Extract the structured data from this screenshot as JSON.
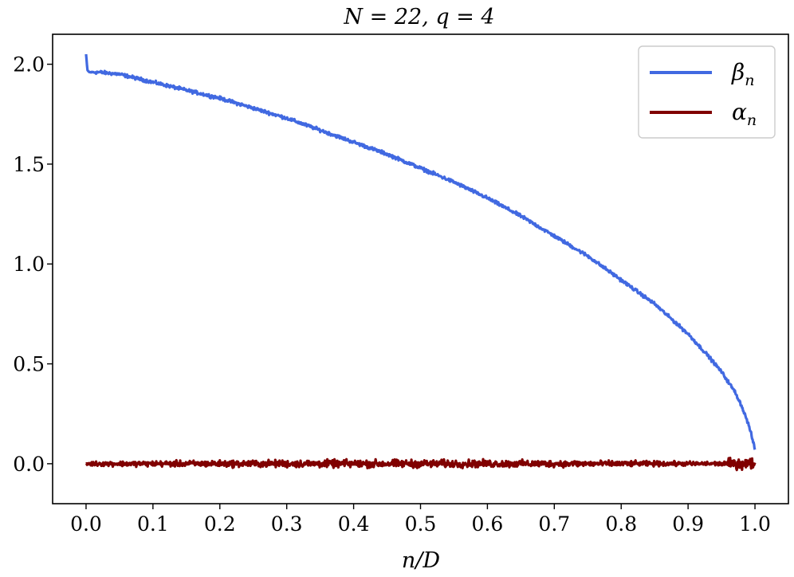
{
  "chart_data": {
    "type": "line",
    "title": "N = 22, q = 4",
    "xlabel": "n/D",
    "ylabel": "",
    "xlim": [
      -0.05,
      1.05
    ],
    "ylim": [
      -0.2,
      2.15
    ],
    "xticks": [
      "0.0",
      "0.1",
      "0.2",
      "0.3",
      "0.4",
      "0.5",
      "0.6",
      "0.7",
      "0.8",
      "0.9",
      "1.0"
    ],
    "yticks": [
      "0.0",
      "0.5",
      "1.0",
      "1.5",
      "2.0"
    ],
    "grid": false,
    "legend_position": "top-right",
    "series": [
      {
        "name": "βn",
        "legend_main": "β",
        "legend_sub": "n",
        "color": "#4169E1",
        "x": [
          0.0,
          0.002,
          0.005,
          0.01,
          0.02,
          0.05,
          0.1,
          0.15,
          0.2,
          0.25,
          0.3,
          0.35,
          0.4,
          0.45,
          0.5,
          0.55,
          0.6,
          0.65,
          0.7,
          0.75,
          0.8,
          0.85,
          0.9,
          0.93,
          0.95,
          0.97,
          0.98,
          0.99,
          0.995,
          1.0
        ],
        "y": [
          2.05,
          1.97,
          1.96,
          1.96,
          1.96,
          1.95,
          1.91,
          1.87,
          1.83,
          1.78,
          1.73,
          1.67,
          1.61,
          1.55,
          1.48,
          1.41,
          1.33,
          1.24,
          1.14,
          1.04,
          0.92,
          0.8,
          0.65,
          0.54,
          0.46,
          0.36,
          0.29,
          0.2,
          0.14,
          0.07
        ],
        "noise": 0.012
      },
      {
        "name": "αn",
        "legend_main": "α",
        "legend_sub": "n",
        "color": "#800000",
        "x": [
          0.0,
          0.1,
          0.2,
          0.3,
          0.4,
          0.5,
          0.6,
          0.7,
          0.8,
          0.9,
          0.95,
          1.0
        ],
        "y": [
          0.0,
          0.0,
          0.0,
          0.0,
          0.0,
          0.0,
          0.0,
          0.0,
          0.0,
          0.0,
          0.0,
          0.0
        ],
        "noise": 0.028,
        "noise_edges": [
          [
            0.0,
            0.35
          ],
          [
            0.5,
            1.0
          ]
        ]
      }
    ]
  }
}
